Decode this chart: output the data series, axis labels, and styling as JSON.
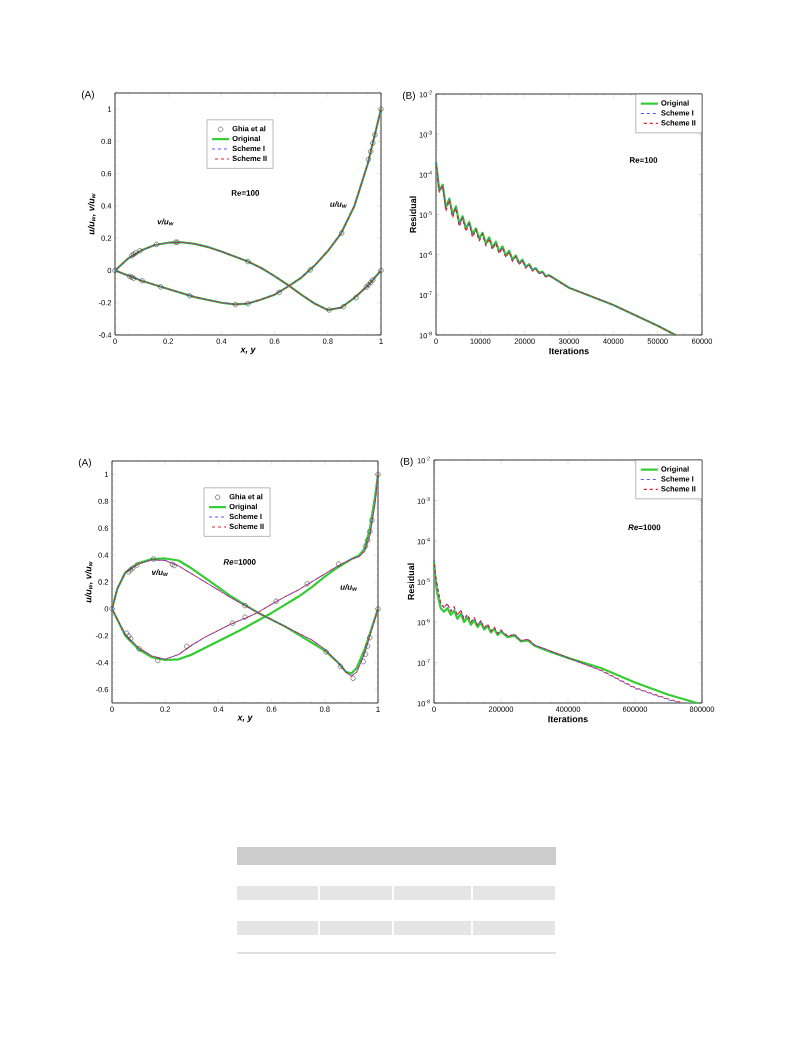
{
  "chart_data": [
    {
      "type": "line",
      "title": "(A)",
      "xlabel": "x, y",
      "ylabel": "u/u$_{w}$, v/u$_{w}$",
      "xlim": [
        0,
        1
      ],
      "ylim": [
        -0.4,
        1.1
      ],
      "xticks": [
        0,
        0.2,
        0.4,
        0.6,
        0.8,
        1
      ],
      "yticks": [
        -0.4,
        -0.2,
        0,
        0.2,
        0.4,
        0.6,
        0.8,
        1
      ],
      "legend": "top",
      "annotations": [
        "Re=100",
        "v/u$_{w}$",
        "u/u$_{w}$"
      ],
      "series": [
        {
          "name": "Ghia et al",
          "type": "scatter",
          "marker": "circle",
          "color": "#404040",
          "x": [
            0,
            0.055,
            0.063,
            0.07,
            0.102,
            0.172,
            0.281,
            0.453,
            0.5,
            0.617,
            0.734,
            0.852,
            0.953,
            0.961,
            0.969,
            0.977,
            1,
            0.063,
            0.07,
            0.078,
            0.094,
            0.156,
            0.227,
            0.234,
            0.5,
            0.805,
            0.859,
            0.906,
            0.945,
            0.953,
            0.961,
            0.969,
            1
          ],
          "values": [
            0,
            -0.037,
            -0.042,
            -0.048,
            -0.064,
            -0.102,
            -0.157,
            -0.211,
            -0.206,
            -0.136,
            0.003,
            0.232,
            0.687,
            0.737,
            0.789,
            0.841,
            1,
            0.092,
            0.101,
            0.109,
            0.123,
            0.161,
            0.175,
            0.175,
            0.055,
            -0.245,
            -0.224,
            -0.169,
            -0.103,
            -0.089,
            -0.074,
            -0.059,
            0
          ]
        },
        {
          "name": "Original",
          "color": "#33cc33",
          "line_style": "solid",
          "x": [
            0,
            0.1,
            0.2,
            0.3,
            0.4,
            0.45,
            0.5,
            0.55,
            0.6,
            0.65,
            0.7,
            0.75,
            0.8,
            0.85,
            0.9,
            0.95,
            1
          ],
          "values": [
            0,
            -0.064,
            -0.115,
            -0.165,
            -0.2,
            -0.21,
            -0.205,
            -0.18,
            -0.15,
            -0.1,
            -0.045,
            0.03,
            0.12,
            0.23,
            0.4,
            0.66,
            1
          ]
        },
        {
          "color": "#33cc33",
          "line_style": "solid",
          "x": [
            0,
            0.05,
            0.1,
            0.15,
            0.2,
            0.25,
            0.3,
            0.35,
            0.4,
            0.45,
            0.5,
            0.55,
            0.6,
            0.65,
            0.7,
            0.75,
            0.8,
            0.85,
            0.9,
            0.95,
            1
          ],
          "values": [
            0,
            0.075,
            0.125,
            0.158,
            0.172,
            0.175,
            0.165,
            0.145,
            0.117,
            0.087,
            0.055,
            0.015,
            -0.035,
            -0.09,
            -0.15,
            -0.205,
            -0.245,
            -0.23,
            -0.17,
            -0.095,
            0
          ]
        },
        {
          "name": "Scheme I",
          "color": "#5555ff",
          "line_style": "dashed",
          "x": [
            0,
            0.1,
            0.2,
            0.3,
            0.4,
            0.45,
            0.5,
            0.55,
            0.6,
            0.65,
            0.7,
            0.75,
            0.8,
            0.85,
            0.9,
            0.95,
            1
          ],
          "values": [
            0,
            -0.064,
            -0.115,
            -0.165,
            -0.2,
            -0.21,
            -0.205,
            -0.18,
            -0.15,
            -0.1,
            -0.045,
            0.03,
            0.12,
            0.23,
            0.4,
            0.66,
            1
          ]
        },
        {
          "color": "#5555ff",
          "line_style": "dashed",
          "x": [
            0,
            0.05,
            0.1,
            0.15,
            0.2,
            0.25,
            0.3,
            0.35,
            0.4,
            0.45,
            0.5,
            0.55,
            0.6,
            0.65,
            0.7,
            0.75,
            0.8,
            0.85,
            0.9,
            0.95,
            1
          ],
          "values": [
            0,
            0.075,
            0.125,
            0.158,
            0.172,
            0.175,
            0.165,
            0.145,
            0.117,
            0.087,
            0.055,
            0.015,
            -0.035,
            -0.09,
            -0.15,
            -0.205,
            -0.245,
            -0.23,
            -0.17,
            -0.095,
            0
          ]
        },
        {
          "name": "Scheme II",
          "color": "#e02020",
          "line_style": "dashed",
          "x": [
            0,
            0.1,
            0.2,
            0.3,
            0.4,
            0.45,
            0.5,
            0.55,
            0.6,
            0.65,
            0.7,
            0.75,
            0.8,
            0.85,
            0.9,
            0.95,
            1
          ],
          "values": [
            0,
            -0.064,
            -0.115,
            -0.165,
            -0.2,
            -0.21,
            -0.205,
            -0.18,
            -0.15,
            -0.1,
            -0.045,
            0.03,
            0.12,
            0.23,
            0.4,
            0.66,
            1
          ]
        },
        {
          "color": "#e02020",
          "line_style": "dashed",
          "x": [
            0,
            0.05,
            0.1,
            0.15,
            0.2,
            0.25,
            0.3,
            0.35,
            0.4,
            0.45,
            0.5,
            0.55,
            0.6,
            0.65,
            0.7,
            0.75,
            0.8,
            0.85,
            0.9,
            0.95,
            1
          ],
          "values": [
            0,
            0.075,
            0.125,
            0.158,
            0.172,
            0.175,
            0.165,
            0.145,
            0.117,
            0.087,
            0.055,
            0.015,
            -0.035,
            -0.09,
            -0.15,
            -0.205,
            -0.245,
            -0.23,
            -0.17,
            -0.095,
            0
          ]
        }
      ]
    },
    {
      "type": "line",
      "title": "(B)",
      "xlabel": "Iterations",
      "ylabel": "Residual",
      "log": "y",
      "xlim": [
        0,
        60000
      ],
      "ylim": [
        1e-08,
        0.01
      ],
      "xticks": [
        0,
        10000,
        20000,
        30000,
        40000,
        50000,
        60000
      ],
      "yticks": [
        {
          "value": 1e-08,
          "label": "10$^{-8}$"
        },
        {
          "value": 1e-07,
          "label": "10$^{-7}$"
        },
        {
          "value": 1e-06,
          "label": "10$^{-6}$"
        },
        {
          "value": 1e-05,
          "label": "10$^{-5}$"
        },
        {
          "value": 0.0001,
          "label": "10$^{-4}$"
        },
        {
          "value": 0.001,
          "label": "10$^{-3}$"
        },
        {
          "value": 0.01,
          "label": "10$^{-2}$"
        }
      ],
      "legend": "top right",
      "annotations": [
        "Re=100"
      ],
      "x": [
        0,
        750,
        1500,
        2250,
        3000,
        3750,
        4500,
        5250,
        6000,
        6750,
        7500,
        8250,
        9000,
        9750,
        10500,
        11250,
        12000,
        12750,
        13500,
        14250,
        15000,
        15750,
        16500,
        17250,
        18000,
        18750,
        19500,
        20250,
        21000,
        21750,
        22500,
        23250,
        24000,
        24750,
        25500,
        30000,
        40000,
        50000,
        54000
      ],
      "series": [
        {
          "name": "Original",
          "color": "#33cc33",
          "line_style": "solid",
          "values": [
            0.0002,
            4e-05,
            5.5e-05,
            1.5e-05,
            2.5e-05,
            1e-05,
            1.6e-05,
            6e-06,
            9e-06,
            4.5e-06,
            6.5e-06,
            3.2e-06,
            4.5e-06,
            2.5e-06,
            3.5e-06,
            1.9e-06,
            2.7e-06,
            1.5e-06,
            2.1e-06,
            1.2e-06,
            1.6e-06,
            9.5e-07,
            1.25e-06,
            7.5e-07,
            9.5e-07,
            6.2e-07,
            7.5e-07,
            5e-07,
            5.8e-07,
            4.2e-07,
            4.6e-07,
            3.5e-07,
            3.8e-07,
            2.9e-07,
            3.1e-07,
            1.5e-07,
            5.6e-08,
            1.7e-08,
            1e-08
          ]
        },
        {
          "name": "Scheme I",
          "color": "#5555ff",
          "line_style": "dashed",
          "values": [
            0.0002,
            3.8e-05,
            5.3e-05,
            1.3e-05,
            2.4e-05,
            9e-06,
            1.5e-05,
            5.4e-06,
            8.6e-06,
            4.1e-06,
            6.2e-06,
            2.9e-06,
            4.3e-06,
            2.3e-06,
            3.4e-06,
            1.75e-06,
            2.6e-06,
            1.4e-06,
            2e-06,
            1.1e-06,
            1.55e-06,
            8.8e-07,
            1.2e-06,
            7e-07,
            9.2e-07,
            5.8e-07,
            7.3e-07,
            4.7e-07,
            5.6e-07,
            4e-07,
            4.5e-07,
            3.4e-07,
            3.7e-07,
            2.85e-07,
            3.05e-07,
            1.5e-07,
            5.6e-08,
            1.7e-08,
            1e-08
          ]
        },
        {
          "name": "Scheme II",
          "color": "#e02020",
          "line_style": "dashed",
          "values": [
            0.00019,
            3.6e-05,
            5.2e-05,
            1.2e-05,
            2.3e-05,
            8.2e-06,
            1.45e-05,
            5e-06,
            8.3e-06,
            3.8e-06,
            6e-06,
            2.7e-06,
            4.2e-06,
            2.2e-06,
            3.3e-06,
            1.65e-06,
            2.5e-06,
            1.35e-06,
            1.95e-06,
            1.05e-06,
            1.5e-06,
            8.5e-07,
            1.18e-06,
            6.8e-07,
            9e-07,
            5.6e-07,
            7.2e-07,
            4.6e-07,
            5.5e-07,
            3.9e-07,
            4.4e-07,
            3.35e-07,
            3.65e-07,
            2.8e-07,
            3e-07,
            1.5e-07,
            5.6e-08,
            1.7e-08,
            1e-08
          ]
        }
      ]
    },
    {
      "type": "line",
      "title": "(A)",
      "xlabel": "x, y",
      "ylabel": "u/u$_{w}$, v/u$_{w}$",
      "xlim": [
        0,
        1
      ],
      "ylim": [
        -0.7,
        1.1
      ],
      "xticks": [
        0,
        0.2,
        0.4,
        0.6,
        0.8,
        1
      ],
      "yticks": [
        -0.6,
        -0.4,
        -0.2,
        0,
        0.2,
        0.4,
        0.6,
        0.8,
        1
      ],
      "legend": "top",
      "annotations": [
        "*Re*=1000",
        "v/u$_{w}$",
        "u/u$_{w}$"
      ],
      "series": [
        {
          "name": "Ghia et al",
          "type": "scatter",
          "marker": "circle",
          "color": "#404040",
          "x": [
            0,
            0.055,
            0.063,
            0.07,
            0.102,
            0.172,
            0.281,
            0.453,
            0.5,
            0.617,
            0.734,
            0.852,
            0.953,
            0.961,
            0.969,
            0.977,
            1,
            0.063,
            0.07,
            0.078,
            0.094,
            0.156,
            0.227,
            0.234,
            0.5,
            0.805,
            0.859,
            0.906,
            0.945,
            0.953,
            0.961,
            0.969,
            1
          ],
          "values": [
            0,
            -0.181,
            -0.202,
            -0.222,
            -0.297,
            -0.383,
            -0.278,
            -0.106,
            -0.061,
            0.057,
            0.187,
            0.333,
            0.466,
            0.511,
            0.575,
            0.659,
            1,
            0.275,
            0.29,
            0.304,
            0.326,
            0.371,
            0.331,
            0.322,
            0.025,
            -0.32,
            -0.427,
            -0.516,
            -0.392,
            -0.337,
            -0.277,
            -0.214,
            0
          ]
        },
        {
          "name": "Original",
          "color": "#33cc33",
          "line_style": "solid",
          "x": [
            0,
            0.05,
            0.1,
            0.15,
            0.2,
            0.25,
            0.3,
            0.35,
            0.4,
            0.45,
            0.5,
            0.55,
            0.6,
            0.65,
            0.7,
            0.75,
            0.8,
            0.85,
            0.9,
            0.93,
            0.95,
            0.97,
            0.99,
            1
          ],
          "values": [
            0,
            -0.2,
            -0.3,
            -0.36,
            -0.38,
            -0.375,
            -0.34,
            -0.29,
            -0.24,
            -0.19,
            -0.14,
            -0.085,
            -0.03,
            0.03,
            0.09,
            0.16,
            0.24,
            0.31,
            0.37,
            0.4,
            0.45,
            0.6,
            0.85,
            1
          ]
        },
        {
          "color": "#33cc33",
          "line_style": "solid",
          "x": [
            0,
            0.02,
            0.05,
            0.1,
            0.15,
            0.2,
            0.25,
            0.3,
            0.35,
            0.4,
            0.45,
            0.5,
            0.55,
            0.6,
            0.65,
            0.7,
            0.75,
            0.8,
            0.85,
            0.88,
            0.9,
            0.92,
            0.95,
            0.98,
            1
          ],
          "values": [
            0,
            0.15,
            0.27,
            0.34,
            0.37,
            0.375,
            0.36,
            0.3,
            0.23,
            0.16,
            0.09,
            0.03,
            -0.03,
            -0.08,
            -0.13,
            -0.19,
            -0.25,
            -0.31,
            -0.4,
            -0.47,
            -0.48,
            -0.44,
            -0.3,
            -0.12,
            0
          ]
        },
        {
          "name": "Scheme I",
          "color": "#5555ff",
          "line_style": "dashed",
          "x": [
            0,
            0.05,
            0.1,
            0.15,
            0.2,
            0.25,
            0.3,
            0.35,
            0.4,
            0.45,
            0.5,
            0.55,
            0.6,
            0.65,
            0.7,
            0.75,
            0.8,
            0.85,
            0.9,
            0.93,
            0.95,
            0.97,
            0.99,
            1
          ],
          "values": [
            0,
            -0.19,
            -0.29,
            -0.35,
            -0.375,
            -0.34,
            -0.27,
            -0.21,
            -0.16,
            -0.11,
            -0.07,
            -0.025,
            0.035,
            0.09,
            0.14,
            0.2,
            0.26,
            0.32,
            0.37,
            0.39,
            0.43,
            0.55,
            0.8,
            1
          ]
        },
        {
          "color": "#5555ff",
          "line_style": "dashed",
          "x": [
            0,
            0.02,
            0.05,
            0.1,
            0.15,
            0.2,
            0.25,
            0.3,
            0.35,
            0.4,
            0.45,
            0.5,
            0.55,
            0.6,
            0.65,
            0.7,
            0.75,
            0.8,
            0.85,
            0.88,
            0.9,
            0.92,
            0.95,
            0.98,
            1
          ],
          "values": [
            0,
            0.15,
            0.27,
            0.335,
            0.365,
            0.36,
            0.32,
            0.26,
            0.2,
            0.14,
            0.08,
            0.025,
            -0.03,
            -0.08,
            -0.13,
            -0.18,
            -0.23,
            -0.3,
            -0.4,
            -0.47,
            -0.5,
            -0.47,
            -0.33,
            -0.13,
            0
          ]
        },
        {
          "name": "Scheme II",
          "color": "#e02020",
          "line_style": "dashed",
          "x": [
            0,
            0.05,
            0.1,
            0.15,
            0.2,
            0.25,
            0.3,
            0.35,
            0.4,
            0.45,
            0.5,
            0.55,
            0.6,
            0.65,
            0.7,
            0.75,
            0.8,
            0.85,
            0.9,
            0.93,
            0.95,
            0.97,
            0.99,
            1
          ],
          "values": [
            0,
            -0.19,
            -0.29,
            -0.35,
            -0.375,
            -0.34,
            -0.27,
            -0.21,
            -0.16,
            -0.11,
            -0.07,
            -0.025,
            0.035,
            0.09,
            0.14,
            0.2,
            0.26,
            0.32,
            0.37,
            0.39,
            0.43,
            0.55,
            0.8,
            1
          ]
        },
        {
          "color": "#e02020",
          "line_style": "dashed",
          "x": [
            0,
            0.02,
            0.05,
            0.1,
            0.15,
            0.2,
            0.25,
            0.3,
            0.35,
            0.4,
            0.45,
            0.5,
            0.55,
            0.6,
            0.65,
            0.7,
            0.75,
            0.8,
            0.85,
            0.88,
            0.9,
            0.92,
            0.95,
            0.98,
            1
          ],
          "values": [
            0,
            0.15,
            0.27,
            0.335,
            0.365,
            0.36,
            0.32,
            0.26,
            0.2,
            0.14,
            0.08,
            0.025,
            -0.03,
            -0.08,
            -0.13,
            -0.18,
            -0.23,
            -0.3,
            -0.4,
            -0.47,
            -0.5,
            -0.47,
            -0.33,
            -0.13,
            0
          ]
        }
      ]
    },
    {
      "type": "line",
      "title": "(B)",
      "xlabel": "Iterations",
      "ylabel": "Residual",
      "log": "y",
      "xlim": [
        0,
        800000
      ],
      "ylim": [
        1e-08,
        0.01
      ],
      "xticks": [
        0,
        200000,
        400000,
        600000,
        800000
      ],
      "yticks": [
        {
          "value": 1e-08,
          "label": "10$^{-8}$"
        },
        {
          "value": 1e-07,
          "label": "10$^{-7}$"
        },
        {
          "value": 1e-06,
          "label": "10$^{-6}$"
        },
        {
          "value": 1e-05,
          "label": "10$^{-5}$"
        },
        {
          "value": 0.0001,
          "label": "10$^{-4}$"
        },
        {
          "value": 0.001,
          "label": "10$^{-3}$"
        },
        {
          "value": 0.01,
          "label": "10$^{-2}$"
        }
      ],
      "legend": "top right",
      "annotations": [
        "*Re*=1000"
      ],
      "series": [
        {
          "name": "Original",
          "color": "#33cc33",
          "line_style": "solid",
          "x": [
            0,
            5000,
            10000,
            20000,
            30000,
            40000,
            50000,
            60000,
            70000,
            80000,
            90000,
            100000,
            110000,
            120000,
            130000,
            140000,
            150000,
            160000,
            170000,
            180000,
            190000,
            200000,
            220000,
            240000,
            260000,
            280000,
            300000,
            350000,
            400000,
            500000,
            600000,
            700000,
            785000
          ],
          "values": [
            3e-05,
            1e-05,
            5e-06,
            2.2e-06,
            1.8e-06,
            2.2e-06,
            1.5e-06,
            1.9e-06,
            1.2e-06,
            1.6e-06,
            1e-06,
            1.3e-06,
            8.5e-07,
            1.1e-06,
            7.5e-07,
            9.5e-07,
            6.5e-07,
            8e-07,
            5.5e-07,
            6.8e-07,
            4.8e-07,
            5.8e-07,
            4.2e-07,
            4.6e-07,
            3.3e-07,
            3.5e-07,
            2.6e-07,
            1.8e-07,
            1.3e-07,
            7.2e-08,
            3.2e-08,
            1.6e-08,
            1e-08
          ]
        },
        {
          "name": "Scheme I",
          "color": "#5555ff",
          "line_style": "dashed",
          "x": [
            0,
            5000,
            10000,
            20000,
            30000,
            40000,
            50000,
            60000,
            70000,
            80000,
            90000,
            100000,
            110000,
            120000,
            130000,
            140000,
            150000,
            160000,
            170000,
            180000,
            190000,
            200000,
            220000,
            240000,
            260000,
            280000,
            300000,
            350000,
            400000,
            500000,
            600000,
            700000,
            735000
          ],
          "values": [
            3.5e-05,
            1.2e-05,
            8e-06,
            2.8e-06,
            2.3e-06,
            2.7e-06,
            1.9e-06,
            2.3e-06,
            1.5e-06,
            1.9e-06,
            1.2e-06,
            1.5e-06,
            1e-06,
            1.25e-06,
            8.5e-07,
            1.05e-06,
            7.2e-07,
            8.8e-07,
            6e-07,
            7.3e-07,
            5.2e-07,
            6.2e-07,
            4.5e-07,
            4.9e-07,
            3.5e-07,
            3.7e-07,
            2.7e-07,
            1.9e-07,
            1.3e-07,
            6.2e-08,
            2.3e-08,
            1.2e-08,
            1e-08
          ]
        },
        {
          "name": "Scheme II",
          "color": "#e02020",
          "line_style": "dashed",
          "x": [
            0,
            5000,
            10000,
            20000,
            30000,
            40000,
            50000,
            60000,
            70000,
            80000,
            90000,
            100000,
            110000,
            120000,
            130000,
            140000,
            150000,
            160000,
            170000,
            180000,
            190000,
            200000,
            220000,
            240000,
            260000,
            280000,
            300000,
            350000,
            400000,
            500000,
            600000,
            700000,
            735000
          ],
          "values": [
            3.2e-05,
            1.3e-05,
            7e-06,
            3e-06,
            2.2e-06,
            2.9e-06,
            1.8e-06,
            2.4e-06,
            1.45e-06,
            2e-06,
            1.15e-06,
            1.55e-06,
            9.8e-07,
            1.3e-06,
            8.3e-07,
            1.08e-06,
            7e-07,
            9e-07,
            5.9e-07,
            7.5e-07,
            5.1e-07,
            6.4e-07,
            4.4e-07,
            5e-07,
            3.4e-07,
            3.8e-07,
            2.7e-07,
            1.9e-07,
            1.3e-07,
            6.4e-08,
            2.4e-08,
            1.25e-08,
            1.05e-08
          ]
        }
      ]
    }
  ]
}
